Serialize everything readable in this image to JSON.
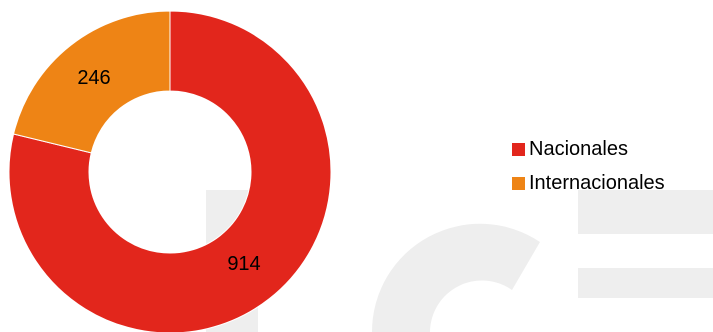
{
  "chart_data": {
    "type": "pie",
    "variant": "donut",
    "categories": [
      "Nacionales",
      "Internacionales"
    ],
    "values": [
      914,
      246
    ],
    "colors": [
      "#e2261c",
      "#ee8415"
    ],
    "data_labels": [
      "914",
      "246"
    ],
    "legend_placement": "right",
    "title": ""
  },
  "legend": {
    "items": [
      {
        "label": "Nacionales",
        "color": "#e2261c"
      },
      {
        "label": "Internacionales",
        "color": "#ee8415"
      }
    ]
  },
  "watermark": {
    "text": "ICE",
    "color": "#eeeeee"
  }
}
